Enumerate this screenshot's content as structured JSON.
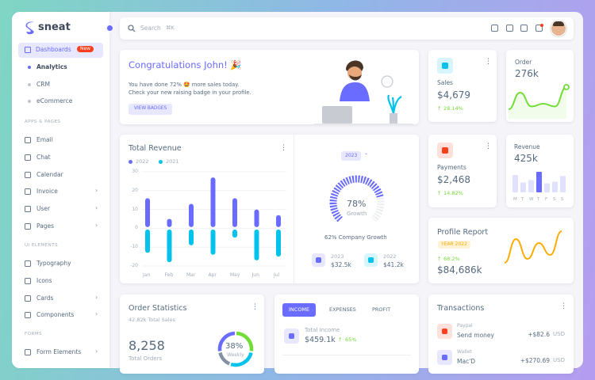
{
  "sidebar": {
    "brand": "sneat",
    "menu": {
      "label": "Dashboards",
      "badge": "New"
    },
    "dashboards_sub": [
      "Analytics",
      "CRM",
      "eCommerce"
    ],
    "sections": [
      {
        "header": "APPS & PAGES",
        "items": [
          "Email",
          "Chat",
          "Calendar",
          "Invoice",
          "User",
          "Pages"
        ]
      },
      {
        "header": "UI ELEMENTS",
        "items": [
          "Typography",
          "Icons",
          "Cards",
          "Components"
        ]
      },
      {
        "header": "FORMS",
        "items": [
          "Form Elements"
        ]
      }
    ]
  },
  "navbar": {
    "search": "Search",
    "shortcut": "⌘K"
  },
  "welcome": {
    "title": "Congratulations John! 🎉",
    "text1": "You have done 72% 🤩 more sales today.",
    "text2": "Check your new raising badge in your profile.",
    "button": "VIEW BADGES"
  },
  "sales": {
    "label": "Sales",
    "value": "$4,679",
    "change": "28.14%"
  },
  "order": {
    "label": "Order",
    "value": "276k",
    "line": [
      1,
      4,
      1.5,
      2,
      1.5,
      5
    ]
  },
  "payments": {
    "label": "Payments",
    "value": "$2,468",
    "change": "14.82%"
  },
  "revenue_mini": {
    "label": "Revenue",
    "value": "425k",
    "days": [
      "M",
      "T",
      "W",
      "T",
      "F",
      "S",
      "S"
    ],
    "values": [
      21,
      12,
      15,
      25,
      11,
      13,
      20
    ],
    "highlight": 3
  },
  "total_revenue": {
    "type": "bar",
    "title": "Total Revenue",
    "categories": [
      "Jan",
      "Feb",
      "Mar",
      "Apr",
      "May",
      "Jun",
      "Jul"
    ],
    "series": [
      {
        "name": "2022",
        "color": "#696cff",
        "values": [
          16,
          5,
          13,
          27,
          16,
          10,
          7
        ]
      },
      {
        "name": "2021",
        "color": "#03c3ec",
        "values": [
          -13,
          -18,
          -9,
          -14,
          -5,
          -17,
          -15
        ]
      }
    ],
    "ylim": [
      -20,
      30
    ],
    "yticks": [
      30,
      20,
      10,
      0,
      -10,
      -20
    ],
    "grid": true
  },
  "growth": {
    "year": "2023",
    "value": 78,
    "value_label": "78%",
    "label": "Growth",
    "caption": "62% Company Growth",
    "stats": [
      {
        "year": "2023",
        "value": "$32.5k"
      },
      {
        "year": "2022",
        "value": "$41.2k"
      }
    ]
  },
  "profile_report": {
    "title": "Profile Report",
    "year": "YEAR 2022",
    "change": "68.2%",
    "value": "$84,686k",
    "line": [
      1,
      4,
      1.5,
      3.5,
      2,
      5
    ]
  },
  "order_statistics": {
    "title": "Order Statistics",
    "subtitle": "42.82k Total Sales",
    "total": "8,258",
    "total_label": "Total Orders",
    "ring_label": "38%",
    "ring_caption": "Weekly"
  },
  "income": {
    "tabs": [
      "INCOME",
      "EXPENSES",
      "PROFIT"
    ],
    "label": "Total Income",
    "value": "$459.1k",
    "change": "65%"
  },
  "transactions": {
    "title": "Transactions",
    "items": [
      {
        "source": "Paypal",
        "desc": "Send money",
        "amount": "+$82.6",
        "currency": "USD"
      },
      {
        "source": "Wallet",
        "desc": "Mac'D",
        "amount": "+$270.69",
        "currency": "USD"
      }
    ]
  }
}
